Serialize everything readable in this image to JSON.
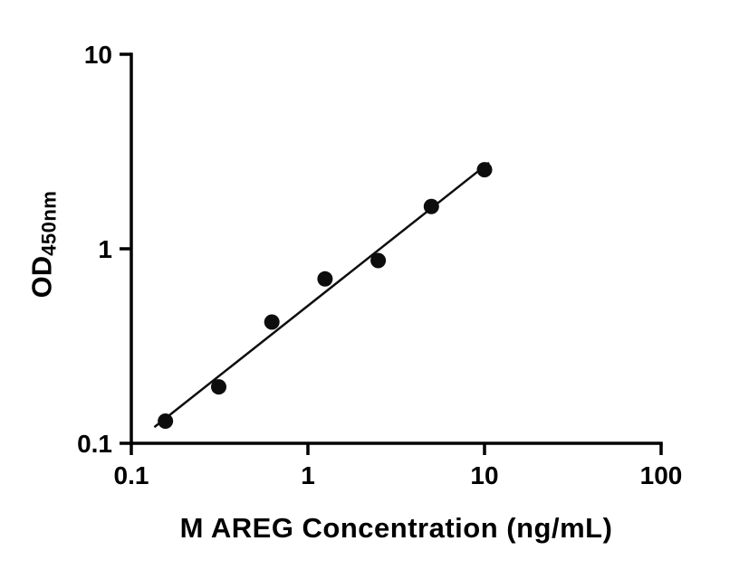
{
  "figure": {
    "background": "#ffffff"
  },
  "chart_data": {
    "type": "scatter",
    "title": "",
    "xlabel": "M AREG Concentration (ng/mL)",
    "ylabel_main": "OD",
    "ylabel_sub": "450nm",
    "x_scale": "log",
    "y_scale": "log",
    "xlim": [
      0.1,
      100
    ],
    "ylim": [
      0.1,
      10
    ],
    "x_ticks": [
      0.1,
      1,
      10,
      100
    ],
    "x_tick_labels": [
      "0.1",
      "1",
      "10",
      "100"
    ],
    "y_ticks": [
      0.1,
      1,
      10
    ],
    "y_tick_labels": [
      "0.1",
      "1",
      "10"
    ],
    "points": {
      "x": [
        0.156,
        0.3125,
        0.625,
        1.25,
        2.5,
        5,
        10
      ],
      "y": [
        0.13,
        0.195,
        0.42,
        0.7,
        0.87,
        1.65,
        2.55
      ]
    },
    "trendline": {
      "type": "linear-fit-loglog",
      "x_start": 0.135,
      "x_end": 10.6
    },
    "grid": false,
    "legend": null,
    "marker_color": "#0d0d0d",
    "line_color": "#0d0d0d",
    "axis_color": "#000000"
  }
}
